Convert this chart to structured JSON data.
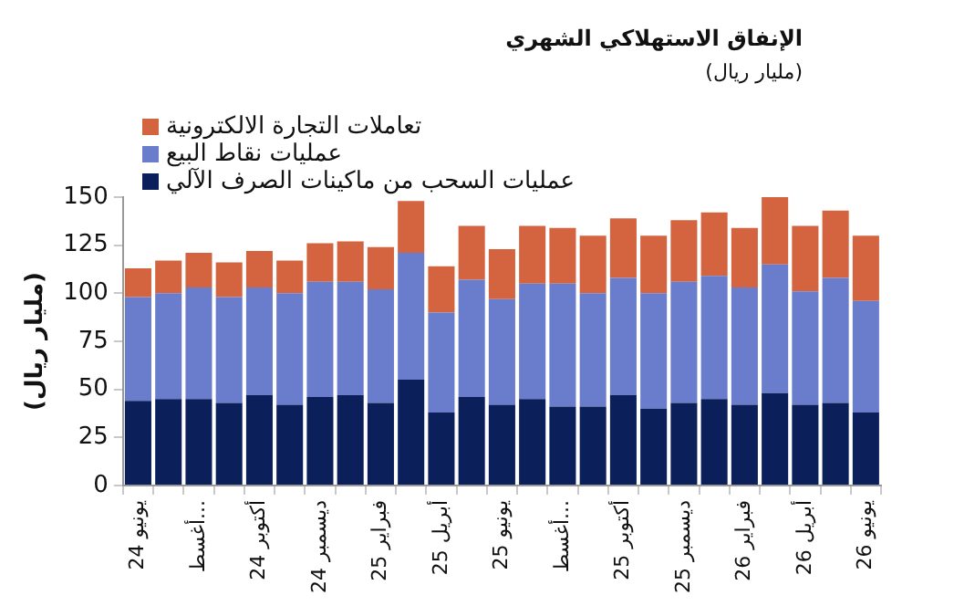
{
  "chart_data": {
    "type": "bar",
    "title": "الإنفاق الاستهلاكي الشهري",
    "subtitle": "(مليار ريال)",
    "ylabel": "(مليار ريال)",
    "categories": [
      "يونيو 24",
      null,
      "أغسط...",
      null,
      "أكتوبر 24",
      null,
      "ديسمبر 24",
      null,
      "فبراير 25",
      null,
      "أبريل 25",
      null,
      "يونيو 25",
      null,
      "أغسط...",
      null,
      "أكتوبر 25",
      null,
      "ديسمبر 25",
      null,
      "فبراير 26",
      null,
      "أبريل 26",
      null,
      "يونيو 26"
    ],
    "series": [
      {
        "name": "عمليات السحب من ماكينات الصرف الآلي",
        "color": "#0b1f5a",
        "values": [
          44,
          45,
          45,
          43,
          47,
          42,
          46,
          47,
          43,
          55,
          38,
          46,
          42,
          45,
          41,
          41,
          47,
          40,
          43,
          45,
          42,
          48,
          42,
          43,
          38
        ]
      },
      {
        "name": "عمليات نقاط البيع",
        "color": "#6a7dcc",
        "values": [
          54,
          55,
          58,
          55,
          56,
          58,
          60,
          59,
          59,
          66,
          52,
          61,
          55,
          60,
          64,
          59,
          61,
          60,
          63,
          64,
          61,
          67,
          59,
          65,
          58
        ]
      },
      {
        "name": "تعاملات التجارة الالكترونية",
        "color": "#d3643f",
        "values": [
          15,
          17,
          18,
          18,
          19,
          17,
          20,
          21,
          22,
          27,
          24,
          28,
          26,
          30,
          29,
          30,
          31,
          30,
          32,
          33,
          31,
          35,
          34,
          35,
          34
        ]
      }
    ],
    "stacked": true,
    "ylim": [
      0,
      150
    ],
    "yticks": [
      0,
      25,
      50,
      75,
      100,
      125,
      150
    ],
    "grid": false,
    "legend": "top left"
  }
}
